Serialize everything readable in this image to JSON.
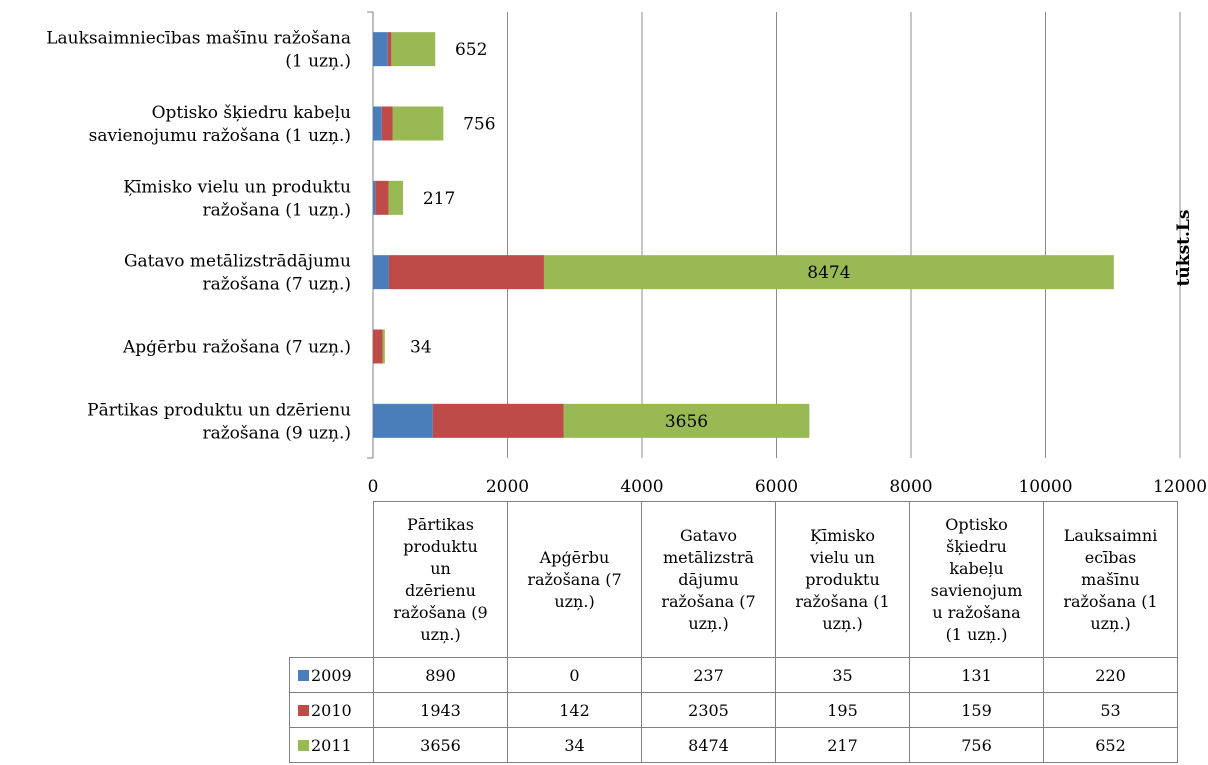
{
  "chart_data": {
    "type": "bar",
    "orientation": "horizontal",
    "stacked": true,
    "unit_label": "tūkst.Ls",
    "categories": [
      "Pārtikas produktu un dzērienu ražošana (9 uzņ.)",
      "Apģērbu ražošana (7 uzņ.)",
      "Gatavo metālizstrādājumu ražošana (7 uzņ.)",
      "Ķīmisko vielu un produktu ražošana (1 uzņ.)",
      "Optisko šķiedru kabeļu savienojumu ražošana (1 uzņ.)",
      "Lauksaimniecības mašīnu ražošana (1 uzņ.)"
    ],
    "axis_category_labels": [
      [
        "Pārtikas produktu un dzērienu",
        "ražošana (9 uzņ.)"
      ],
      [
        "Apģērbu ražošana (7 uzņ.)"
      ],
      [
        "Gatavo metālizstrādājumu",
        "ražošana (7 uzņ.)"
      ],
      [
        "Ķīmisko vielu un produktu",
        "ražošana (1 uzņ.)"
      ],
      [
        "Optisko šķiedru kabeļu",
        "savienojumu ražošana (1 uzņ.)"
      ],
      [
        "Lauksaimniecības mašīnu ražošana",
        "(1 uzņ.)"
      ]
    ],
    "table_category_labels": [
      [
        "Pārtikas",
        "produktu",
        "un",
        "dzērienu",
        "ražošana (9",
        "uzņ.)"
      ],
      [
        "Apģērbu",
        "ražošana (7",
        "uzņ.)"
      ],
      [
        "Gatavo",
        "metālizstrā",
        "dājumu",
        "ražošana (7",
        "uzņ.)"
      ],
      [
        "Ķīmisko",
        "vielu un",
        "produktu",
        "ražošana (1",
        "uzņ.)"
      ],
      [
        "Optisko",
        "šķiedru",
        "kabeļu",
        "savienojum",
        "u ražošana",
        "(1 uzņ.)"
      ],
      [
        "Lauksaimni",
        "ecības",
        "mašīnu",
        "ražošana (1",
        "uzņ.)"
      ]
    ],
    "series": [
      {
        "name": "2009",
        "color": "#4a7ebb",
        "values": [
          890,
          0,
          237,
          35,
          131,
          220
        ]
      },
      {
        "name": "2010",
        "color": "#be4b48",
        "values": [
          1943,
          142,
          2305,
          195,
          159,
          53
        ]
      },
      {
        "name": "2011",
        "color": "#98b954",
        "values": [
          3656,
          34,
          8474,
          217,
          756,
          652
        ]
      }
    ],
    "data_labels_series": "2011",
    "xlim": [
      0,
      12000
    ],
    "xticks": [
      0,
      2000,
      4000,
      6000,
      8000,
      10000,
      12000
    ],
    "grid": true,
    "legend": "data-table"
  }
}
